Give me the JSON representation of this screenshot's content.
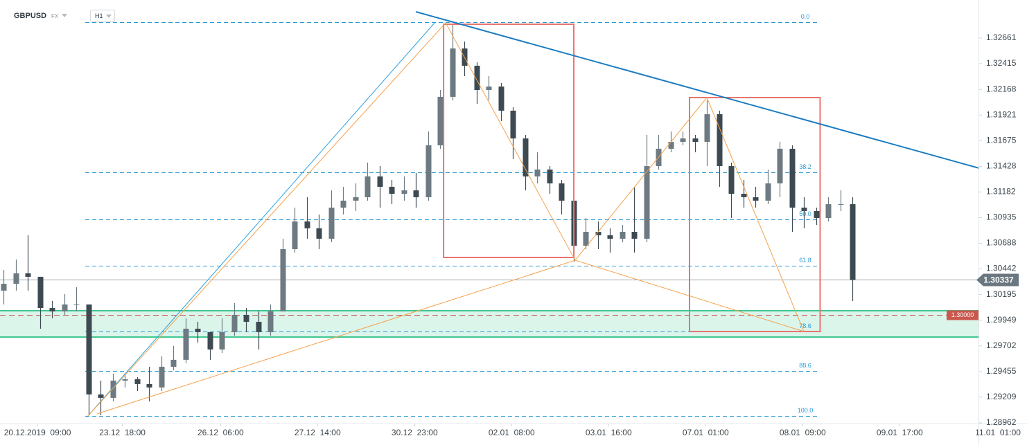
{
  "header": {
    "symbol": "GBPUSD",
    "market": "FX",
    "timeframe": "H1"
  },
  "chart_data": {
    "type": "candlestick",
    "x": [
      0,
      1,
      2,
      3,
      4,
      5,
      6,
      7,
      8,
      9,
      10,
      11,
      12,
      13,
      14,
      15,
      16,
      17,
      18,
      19,
      20,
      21,
      22,
      23,
      24,
      25,
      26,
      27,
      28,
      29,
      30,
      31,
      32,
      33,
      34,
      35,
      36,
      37,
      38,
      39,
      40,
      41,
      42,
      43,
      44,
      45,
      46,
      47,
      48,
      49,
      50,
      51,
      52,
      53,
      54,
      55,
      56,
      57,
      58,
      59,
      60,
      61,
      62,
      63,
      64,
      65,
      66,
      67,
      68,
      69,
      70
    ],
    "open": [
      1.30233,
      1.30299,
      1.30399,
      1.30366,
      1.30066,
      1.30033,
      1.301,
      1.301,
      1.29235,
      1.29202,
      1.29368,
      1.29381,
      1.29335,
      1.29302,
      1.29501,
      1.29568,
      1.29867,
      1.29834,
      1.29667,
      1.29834,
      1.3,
      1.29933,
      1.29834,
      1.30033,
      1.30632,
      1.30898,
      1.30832,
      1.30732,
      1.31031,
      1.31098,
      1.31131,
      1.31331,
      1.31231,
      1.31164,
      1.31197,
      1.31131,
      1.3163,
      1.32096,
      1.32561,
      1.32395,
      1.32162,
      1.32195,
      1.31963,
      1.31696,
      1.31331,
      1.31397,
      1.31264,
      1.31098,
      1.30665,
      1.30798,
      1.30765,
      1.30732,
      1.30798,
      1.30732,
      1.3143,
      1.31597,
      1.31663,
      1.31696,
      1.31663,
      1.31929,
      1.3143,
      1.31164,
      1.31131,
      1.31098,
      1.31264,
      1.31597,
      1.31031,
      1.30998,
      1.30931,
      1.31064,
      1.31064
    ],
    "high": [
      1.30432,
      1.30532,
      1.30765,
      1.30366,
      1.30133,
      1.30199,
      1.30266,
      1.301,
      1.29368,
      1.29434,
      1.29434,
      1.29401,
      1.29501,
      1.29601,
      1.29701,
      1.29967,
      1.29933,
      1.29834,
      1.29967,
      1.30113,
      1.30066,
      1.30033,
      1.301,
      1.30732,
      1.31031,
      1.31131,
      1.30965,
      1.31197,
      1.31231,
      1.31264,
      1.31464,
      1.3143,
      1.31297,
      1.31331,
      1.31364,
      1.31763,
      1.32162,
      1.32794,
      1.32628,
      1.32428,
      1.32295,
      1.32229,
      1.31996,
      1.3173,
      1.31563,
      1.3143,
      1.31297,
      1.31098,
      1.30931,
      1.30898,
      1.30832,
      1.30865,
      1.31231,
      1.3173,
      1.3173,
      1.31763,
      1.31763,
      1.3173,
      1.32062,
      1.31963,
      1.31464,
      1.31297,
      1.31231,
      1.31397,
      1.31663,
      1.3163,
      1.31131,
      1.31031,
      1.31131,
      1.31197,
      1.31131
    ],
    "low": [
      1.301,
      1.30233,
      1.30233,
      1.29867,
      1.29967,
      1.3,
      1.30033,
      1.29035,
      1.29035,
      1.29168,
      1.29302,
      1.29268,
      1.29168,
      1.29268,
      1.29468,
      1.29534,
      1.29734,
      1.29568,
      1.29634,
      1.298,
      1.29834,
      1.29667,
      1.298,
      1.30033,
      1.30599,
      1.30732,
      1.30632,
      1.30698,
      1.30965,
      1.30998,
      1.31098,
      1.31031,
      1.31064,
      1.31098,
      1.31031,
      1.31098,
      1.31597,
      1.32062,
      1.32295,
      1.32029,
      1.32062,
      1.31863,
      1.31497,
      1.31197,
      1.31264,
      1.31164,
      1.30965,
      1.30512,
      1.30632,
      1.30632,
      1.30599,
      1.30698,
      1.30599,
      1.30698,
      1.31397,
      1.31563,
      1.3163,
      1.31563,
      1.3143,
      1.31231,
      1.30931,
      1.31031,
      1.31031,
      1.31064,
      1.31131,
      1.30798,
      1.30832,
      1.30865,
      1.30898,
      1.30998,
      1.30133
    ],
    "close": [
      1.30299,
      1.30399,
      1.30366,
      1.30066,
      1.30033,
      1.301,
      1.301,
      1.29235,
      1.29202,
      1.29368,
      1.29381,
      1.29335,
      1.29302,
      1.29501,
      1.29568,
      1.29867,
      1.29834,
      1.29667,
      1.29834,
      1.3,
      1.29933,
      1.29834,
      1.30033,
      1.30632,
      1.30898,
      1.30832,
      1.30732,
      1.31031,
      1.31098,
      1.31131,
      1.31331,
      1.31231,
      1.31164,
      1.31197,
      1.31131,
      1.3163,
      1.32096,
      1.32561,
      1.32395,
      1.32162,
      1.32195,
      1.31963,
      1.31696,
      1.31331,
      1.31397,
      1.31264,
      1.31098,
      1.30665,
      1.30798,
      1.30765,
      1.30732,
      1.30798,
      1.30732,
      1.3143,
      1.31597,
      1.31663,
      1.31696,
      1.31663,
      1.31929,
      1.3143,
      1.31164,
      1.31131,
      1.31098,
      1.31264,
      1.31597,
      1.31031,
      1.30998,
      1.30931,
      1.31064,
      1.31064,
      1.30337
    ],
    "up_color": "#6d7a82",
    "down_color": "#3e4a52",
    "xlim": [
      -0.29,
      84.4
    ],
    "xticks": [
      {
        "value": 2.8,
        "label": "20.12.2019  09:00"
      },
      {
        "value": 9.8,
        "label": "23.12  18:00"
      },
      {
        "value": 17.9,
        "label": "26.12  06:00"
      },
      {
        "value": 25.9,
        "label": "27.12  14:00"
      },
      {
        "value": 33.9,
        "label": "30.12  23:00"
      },
      {
        "value": 41.9,
        "label": "02.01  08:00"
      },
      {
        "value": 49.9,
        "label": "03.01  16:00"
      },
      {
        "value": 57.9,
        "label": "07.01  01:00"
      },
      {
        "value": 65.9,
        "label": "08.01  09:00"
      },
      {
        "value": 73.9,
        "label": "09.01  17:00"
      },
      {
        "value": 82.0,
        "label": "11.01  01:00"
      }
    ],
    "ylim": [
      1.28749,
      1.33027
    ],
    "yticks": [
      1.32661,
      1.32415,
      1.32168,
      1.31921,
      1.31675,
      1.31428,
      1.31182,
      1.30935,
      1.30688,
      1.30442,
      1.30195,
      1.29949,
      1.29702,
      1.29455,
      1.29209,
      1.28962
    ],
    "grid": false,
    "fibonacci": {
      "color": "#2a9ad6",
      "x": [
        6.74,
        67.14
      ],
      "levels": [
        {
          "value": 1.32814,
          "label": "0.0"
        },
        {
          "value": 1.3137,
          "label": "38.2"
        },
        {
          "value": 1.30918,
          "label": "50.0"
        },
        {
          "value": 1.30472,
          "label": "61.8"
        },
        {
          "value": 1.2984,
          "label": "78.6"
        },
        {
          "value": 1.29461,
          "label": "88.6"
        },
        {
          "value": 1.29029,
          "label": "100.0"
        }
      ]
    },
    "zone": {
      "ylim": [
        1.29787,
        1.3004
      ],
      "color": "#3fc68f"
    },
    "level": {
      "value": 1.3,
      "label": "1.30000",
      "color": "#c9574e"
    },
    "last_price": 1.30337,
    "last_price_color": "#6b7780",
    "trendlines": [
      {
        "x": [
          34.0,
          80.46
        ],
        "y": [
          1.32914,
          1.3141
        ],
        "color": "#1a7cc1",
        "width": 2
      },
      {
        "x": [
          6.86,
          35.6
        ],
        "y": [
          1.29015,
          1.32814
        ],
        "color": "#29a3e0",
        "width": 1
      },
      {
        "x": [
          6.97,
          36.46
        ],
        "y": [
          1.29029,
          1.32807
        ],
        "color": "#f5a04a",
        "width": 1
      },
      {
        "x": [
          36.46,
          47.14
        ],
        "y": [
          1.32807,
          1.30525
        ],
        "color": "#f5a04a",
        "width": 1
      },
      {
        "x": [
          47.14,
          58.0
        ],
        "y": [
          1.30525,
          1.32089
        ],
        "color": "#f5a04a",
        "width": 1
      },
      {
        "x": [
          58.0,
          66.0
        ],
        "y": [
          1.32089,
          1.2984
        ],
        "color": "#f5a04a",
        "width": 1
      },
      {
        "x": [
          7.71,
          47.14
        ],
        "y": [
          1.29049,
          1.30525
        ],
        "color": "#f5a04a",
        "width": 1
      },
      {
        "x": [
          47.14,
          66.0
        ],
        "y": [
          1.30525,
          1.2984
        ],
        "color": "#f5a04a",
        "width": 1
      }
    ],
    "rectangles": [
      {
        "x": [
          36.29,
          47.03
        ],
        "y": [
          1.30552,
          1.32794
        ],
        "color": "#e8736f"
      },
      {
        "x": [
          56.57,
          67.34
        ],
        "y": [
          1.2984,
          1.32089
        ],
        "color": "#e8736f"
      }
    ]
  }
}
